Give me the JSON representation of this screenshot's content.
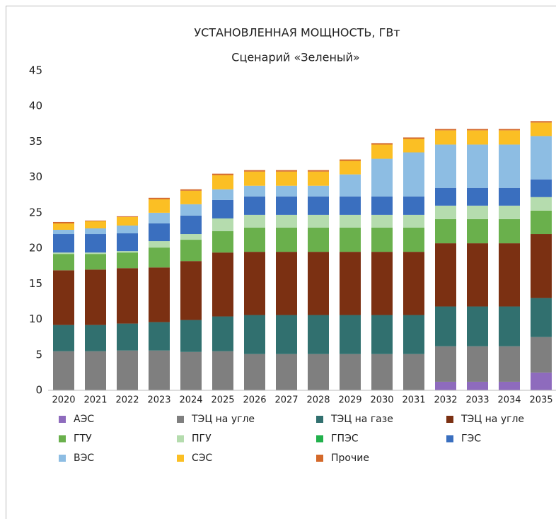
{
  "chart_data": {
    "type": "stacked_bar",
    "title": "УСТАНОВЛЕННАЯ МОЩНОСТЬ, ГВт",
    "subtitle": "Сценарий «Зеленый»",
    "categories": [
      "2020",
      "2021",
      "2022",
      "2023",
      "2024",
      "2025",
      "2026",
      "2027",
      "2028",
      "2029",
      "2030",
      "2031",
      "2032",
      "2033",
      "2034",
      "2035"
    ],
    "ylim": [
      0,
      45
    ],
    "yticks": [
      0,
      5,
      10,
      15,
      20,
      25,
      30,
      35,
      40,
      45
    ],
    "grid": false,
    "series": [
      {
        "name": "АЭС",
        "color": "#8e6bbd",
        "values": [
          0,
          0,
          0,
          0,
          0,
          0,
          0,
          0,
          0,
          0,
          0,
          0,
          1.2,
          1.2,
          1.2,
          2.5
        ]
      },
      {
        "name": "ТЭЦ на угле",
        "color": "#7f7f7f",
        "values": [
          5.5,
          5.5,
          5.6,
          5.6,
          5.4,
          5.5,
          5.1,
          5.1,
          5.1,
          5.1,
          5.1,
          5.1,
          5.0,
          5.0,
          5.0,
          5.0
        ]
      },
      {
        "name": "ТЭЦ на газе",
        "color": "#31706f",
        "values": [
          3.7,
          3.7,
          3.8,
          4.0,
          4.5,
          4.9,
          5.5,
          5.5,
          5.5,
          5.5,
          5.5,
          5.5,
          5.6,
          5.6,
          5.6,
          5.5
        ]
      },
      {
        "name": "ТЭЦ на угле",
        "color": "#7b3012",
        "values": [
          7.7,
          7.8,
          7.8,
          7.7,
          8.3,
          9.0,
          8.9,
          8.9,
          8.9,
          8.9,
          8.9,
          8.9,
          8.9,
          8.9,
          8.9,
          9.0
        ]
      },
      {
        "name": "ГТУ",
        "color": "#6ab04c",
        "values": [
          2.3,
          2.2,
          2.2,
          2.8,
          3.0,
          3.0,
          3.4,
          3.4,
          3.4,
          3.4,
          3.4,
          3.4,
          3.4,
          3.4,
          3.4,
          3.3
        ]
      },
      {
        "name": "ПГУ",
        "color": "#b5dcae",
        "values": [
          0.2,
          0.2,
          0.2,
          0.9,
          0.8,
          1.8,
          1.8,
          1.8,
          1.8,
          1.8,
          1.8,
          1.8,
          1.9,
          1.9,
          1.9,
          1.9
        ]
      },
      {
        "name": "ГПЭС",
        "color": "#22b14c",
        "values": [
          0,
          0,
          0,
          0,
          0,
          0,
          0,
          0,
          0,
          0,
          0,
          0,
          0,
          0,
          0,
          0
        ]
      },
      {
        "name": "ГЭС",
        "color": "#3a6fbf",
        "values": [
          2.6,
          2.6,
          2.5,
          2.5,
          2.6,
          2.6,
          2.6,
          2.6,
          2.6,
          2.6,
          2.6,
          2.6,
          2.5,
          2.5,
          2.5,
          2.5
        ]
      },
      {
        "name": "ВЭС",
        "color": "#8dbde3",
        "values": [
          0.6,
          0.8,
          1.1,
          1.5,
          1.6,
          1.5,
          1.5,
          1.5,
          1.5,
          3.1,
          5.3,
          6.2,
          6.1,
          6.1,
          6.1,
          6.1
        ]
      },
      {
        "name": "СЭС",
        "color": "#fbbf24",
        "values": [
          0.9,
          1.0,
          1.2,
          1.9,
          1.9,
          2.0,
          2.0,
          2.0,
          2.0,
          1.9,
          2.0,
          1.9,
          2.0,
          2.0,
          2.0,
          1.9
        ]
      },
      {
        "name": "Прочие",
        "color": "#d4692a",
        "values": [
          0.2,
          0.1,
          0.1,
          0.2,
          0.2,
          0.2,
          0.2,
          0.2,
          0.2,
          0.2,
          0.2,
          0.2,
          0.2,
          0.2,
          0.2,
          0.2
        ]
      }
    ]
  }
}
